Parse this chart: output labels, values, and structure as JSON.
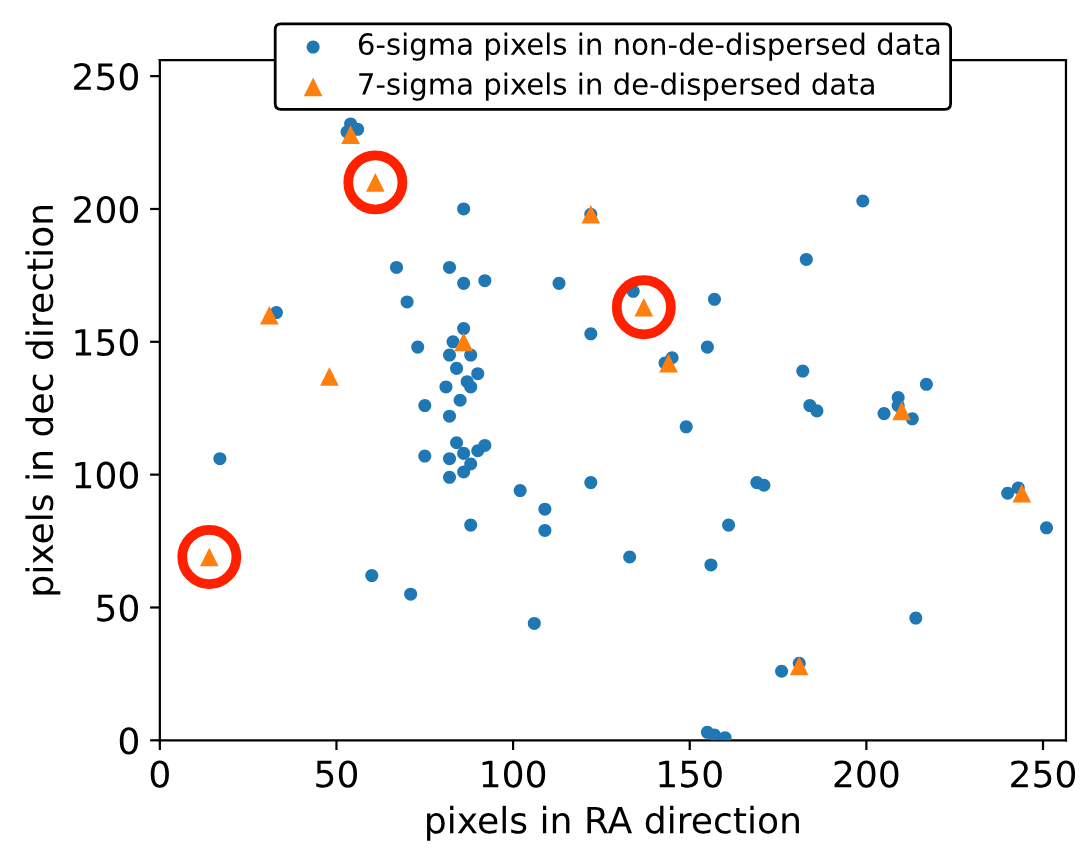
{
  "chart_data": {
    "type": "scatter",
    "xlabel": "pixels in RA direction",
    "ylabel": "pixels in dec direction",
    "xlim": [
      0,
      256.5
    ],
    "ylim": [
      0,
      256
    ],
    "xticks": [
      0,
      50,
      100,
      150,
      200,
      250
    ],
    "yticks": [
      0,
      50,
      100,
      150,
      200,
      250
    ],
    "grid": false,
    "legend": "top",
    "series": [
      {
        "name": "6-sigma pixels in non-de-dispersed data",
        "color": "#1f77b4",
        "marker": "circle",
        "x": [
          54,
          53,
          56,
          86,
          67,
          82,
          70,
          86,
          33,
          73,
          83,
          86,
          88,
          84,
          87,
          81,
          88,
          85,
          90,
          82,
          75,
          82,
          75,
          86,
          84,
          90,
          88,
          82,
          92,
          86,
          82,
          88,
          60,
          71,
          17,
          92,
          113,
          122,
          134,
          157,
          122,
          155,
          143,
          145,
          199,
          183,
          182,
          217,
          209,
          102,
          109,
          109,
          122,
          149,
          133,
          156,
          161,
          106,
          157,
          155,
          160,
          169,
          171,
          186,
          184,
          205,
          209,
          213,
          240,
          243,
          251,
          214,
          176,
          181
        ],
        "values": [
          232,
          229,
          230,
          200,
          178,
          178,
          165,
          172,
          161,
          148,
          150,
          155,
          145,
          140,
          135,
          133,
          133,
          128,
          138,
          145,
          126,
          122,
          107,
          108,
          112,
          109,
          104,
          106,
          111,
          101,
          99,
          81,
          62,
          55,
          106,
          173,
          172,
          198,
          169,
          166,
          153,
          148,
          142,
          144,
          203,
          181,
          139,
          134,
          129,
          94,
          87,
          79,
          97,
          118,
          69,
          66,
          81,
          44,
          2,
          3,
          1,
          97,
          96,
          124,
          126,
          123,
          126,
          121,
          93,
          95,
          80,
          46,
          26,
          29
        ]
      },
      {
        "name": "7-sigma pixels in de-dispersed data",
        "color": "#ff7f0e",
        "marker": "triangle",
        "x": [
          54,
          61,
          31,
          48,
          86,
          14,
          137,
          122,
          144,
          210,
          244,
          181
        ],
        "values": [
          228,
          210,
          160,
          137,
          150,
          69,
          163,
          198,
          142,
          124,
          93,
          28
        ]
      },
      {
        "color": "#ff2000",
        "marker": "circle",
        "line_style": "solid",
        "x": [
          61,
          137,
          14
        ],
        "values": [
          210,
          163,
          69
        ]
      }
    ]
  }
}
